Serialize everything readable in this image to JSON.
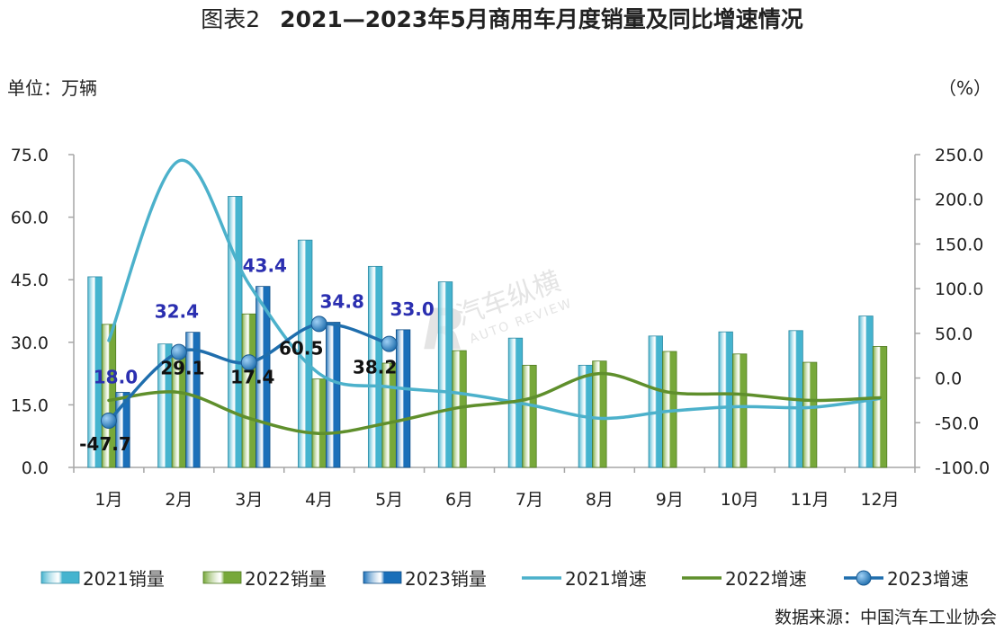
{
  "header": {
    "figure_no": "图表2",
    "title": "2021—2023年5月商用车月度销量及同比增速情况"
  },
  "unit_left": "单位：万辆",
  "unit_right": "（%）",
  "source": "数据来源：中国汽车工业协会",
  "watermark": {
    "cn": "汽车纵横",
    "en": "AUTO REVIEW",
    "logo_letter": "R"
  },
  "colors": {
    "bar2021": "#45b4cf",
    "bar2022": "#77a83a",
    "bar2023": "#1a6fb9",
    "line2021": "#4cb1cb",
    "line2022": "#5f8f2c",
    "line2023": "#1f6ead",
    "label2023": "#2b2fb0",
    "axis": "#a6a6a6"
  },
  "chart_data": {
    "type": "bar",
    "categories": [
      "1月",
      "2月",
      "3月",
      "4月",
      "5月",
      "6月",
      "7月",
      "8月",
      "9月",
      "10月",
      "11月",
      "12月"
    ],
    "y_left": {
      "min": 0,
      "max": 75,
      "step": 15,
      "ticks": [
        "0.0",
        "15.0",
        "30.0",
        "45.0",
        "60.0",
        "75.0"
      ]
    },
    "y_right": {
      "min": -100,
      "max": 250,
      "step": 50,
      "ticks": [
        "-100.0",
        "-50.0",
        "0.0",
        "50.0",
        "100.0",
        "150.0",
        "200.0",
        "250.0"
      ]
    },
    "bar_series": [
      {
        "name": "2021销量",
        "values": [
          45.7,
          29.6,
          65.0,
          54.5,
          48.2,
          44.5,
          31.0,
          24.5,
          31.5,
          32.5,
          32.8,
          36.3
        ]
      },
      {
        "name": "2022销量",
        "values": [
          34.3,
          27.0,
          36.8,
          21.2,
          25.0,
          28.0,
          24.5,
          25.5,
          27.8,
          27.2,
          25.2,
          29.0
        ]
      },
      {
        "name": "2023销量",
        "values": [
          18.0,
          32.4,
          43.4,
          34.8,
          33.0,
          null,
          null,
          null,
          null,
          null,
          null,
          null
        ]
      }
    ],
    "line_series": [
      {
        "name": "2021增速",
        "values": [
          42,
          243,
          105,
          5,
          -10,
          -17,
          -30,
          -45,
          -37,
          -32,
          -33,
          -23
        ]
      },
      {
        "name": "2022增速",
        "values": [
          -25,
          -16,
          -45,
          -62,
          -50,
          -33,
          -23,
          5,
          -16,
          -18,
          -25,
          -22
        ]
      },
      {
        "name": "2023增速",
        "values": [
          -47.7,
          29.1,
          17.4,
          60.5,
          38.2,
          null,
          null,
          null,
          null,
          null,
          null,
          null
        ]
      }
    ],
    "bar_labels_2023": [
      "18.0",
      "32.4",
      "43.4",
      "34.8",
      "33.0"
    ],
    "line_labels_2023": [
      "-47.7",
      "29.1",
      "17.4",
      "60.5",
      "38.2"
    ],
    "legend_position": "bottom",
    "grid": false
  }
}
